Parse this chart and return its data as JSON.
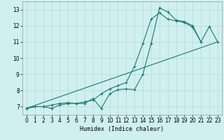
{
  "title": "",
  "xlabel": "Humidex (Indice chaleur)",
  "xlim": [
    -0.5,
    23.5
  ],
  "ylim": [
    6.5,
    13.5
  ],
  "background_color": "#cff0ef",
  "grid_color": "#b8dedd",
  "line_color": "#1a7a6e",
  "line1_x": [
    0,
    1,
    2,
    3,
    4,
    5,
    6,
    7,
    8,
    9,
    10,
    11,
    12,
    13,
    14,
    15,
    16,
    17,
    18,
    19,
    20,
    21
  ],
  "line1_y": [
    6.9,
    7.0,
    7.0,
    7.1,
    7.2,
    7.25,
    7.2,
    7.2,
    7.5,
    6.9,
    7.8,
    8.05,
    8.1,
    8.05,
    9.0,
    10.9,
    13.1,
    12.85,
    12.35,
    12.25,
    12.0,
    11.0
  ],
  "line2_x": [
    0,
    1,
    2,
    3,
    4,
    5,
    6,
    7,
    8,
    9,
    10,
    11,
    12,
    13,
    14,
    15,
    16,
    17,
    18,
    19,
    20,
    21,
    22,
    23
  ],
  "line2_y": [
    6.9,
    7.0,
    7.0,
    6.9,
    7.1,
    7.2,
    7.2,
    7.3,
    7.4,
    7.8,
    8.1,
    8.3,
    8.5,
    9.5,
    10.9,
    12.4,
    12.8,
    12.4,
    12.3,
    12.2,
    11.9,
    11.0,
    11.95,
    11.0
  ],
  "line3_x": [
    0,
    23
  ],
  "line3_y": [
    6.9,
    11.0
  ],
  "xticks": [
    0,
    1,
    2,
    3,
    4,
    5,
    6,
    7,
    8,
    9,
    10,
    11,
    12,
    13,
    14,
    15,
    16,
    17,
    18,
    19,
    20,
    21,
    22,
    23
  ],
  "yticks": [
    7,
    8,
    9,
    10,
    11,
    12,
    13
  ],
  "xlabel_fontsize": 6.0,
  "tick_fontsize": 5.5
}
